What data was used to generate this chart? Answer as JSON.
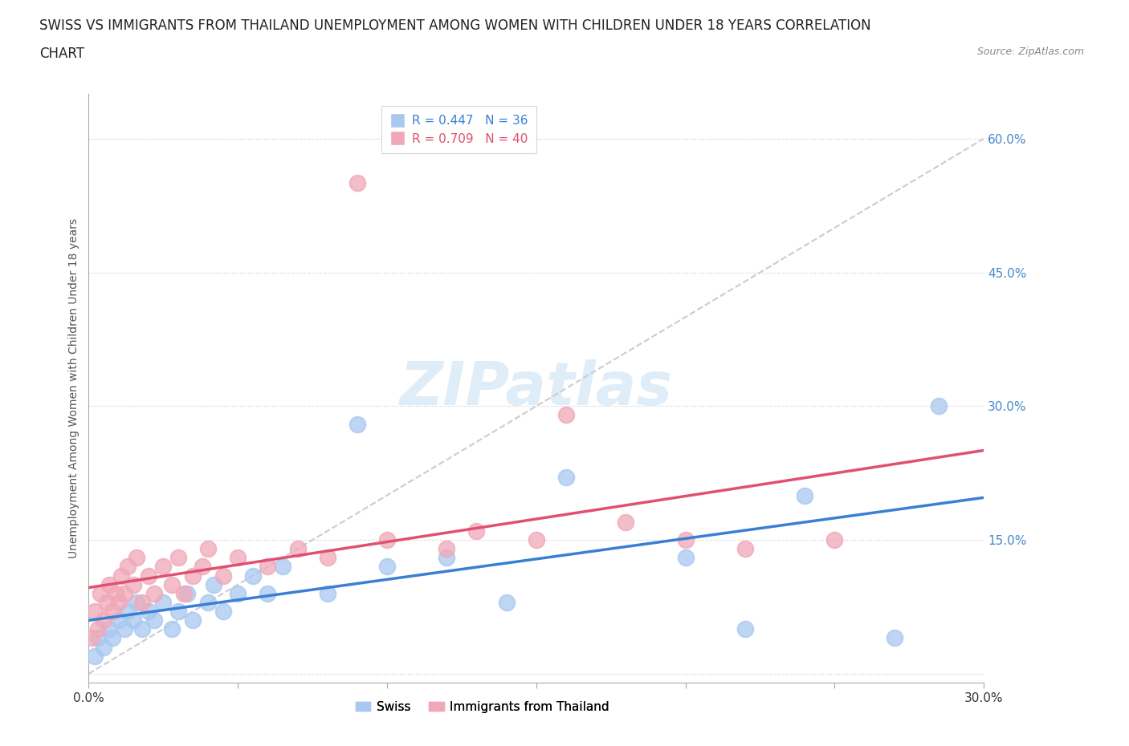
{
  "title_line1": "SWISS VS IMMIGRANTS FROM THAILAND UNEMPLOYMENT AMONG WOMEN WITH CHILDREN UNDER 18 YEARS CORRELATION",
  "title_line2": "CHART",
  "source": "Source: ZipAtlas.com",
  "ylabel": "Unemployment Among Women with Children Under 18 years",
  "xlim": [
    0.0,
    0.3
  ],
  "ylim": [
    -0.01,
    0.65
  ],
  "yticks": [
    0.0,
    0.15,
    0.3,
    0.45,
    0.6
  ],
  "ytick_labels": [
    "",
    "15.0%",
    "30.0%",
    "45.0%",
    "60.0%"
  ],
  "xticks": [
    0.0,
    0.05,
    0.1,
    0.15,
    0.2,
    0.25,
    0.3
  ],
  "xtick_labels": [
    "0.0%",
    "",
    "",
    "",
    "",
    "",
    "30.0%"
  ],
  "swiss_R": 0.447,
  "swiss_N": 36,
  "thailand_R": 0.709,
  "thailand_N": 40,
  "swiss_color": "#a8c8f0",
  "thailand_color": "#f0a8b8",
  "trend_swiss_color": "#3a7fd4",
  "trend_thailand_color": "#e05070",
  "diagonal_color": "#cccccc",
  "legend_swiss_label": "Swiss",
  "legend_thailand_label": "Immigrants from Thailand",
  "watermark": "ZIPatlas",
  "swiss_x": [
    0.002,
    0.003,
    0.005,
    0.007,
    0.008,
    0.01,
    0.012,
    0.013,
    0.015,
    0.016,
    0.018,
    0.02,
    0.022,
    0.025,
    0.028,
    0.03,
    0.033,
    0.035,
    0.04,
    0.042,
    0.045,
    0.05,
    0.055,
    0.06,
    0.065,
    0.08,
    0.09,
    0.1,
    0.12,
    0.14,
    0.16,
    0.2,
    0.22,
    0.24,
    0.27,
    0.285
  ],
  "swiss_y": [
    0.02,
    0.04,
    0.03,
    0.05,
    0.04,
    0.06,
    0.05,
    0.07,
    0.06,
    0.08,
    0.05,
    0.07,
    0.06,
    0.08,
    0.05,
    0.07,
    0.09,
    0.06,
    0.08,
    0.1,
    0.07,
    0.09,
    0.11,
    0.09,
    0.12,
    0.09,
    0.28,
    0.12,
    0.13,
    0.08,
    0.22,
    0.13,
    0.05,
    0.2,
    0.04,
    0.3
  ],
  "thailand_x": [
    0.001,
    0.002,
    0.003,
    0.004,
    0.005,
    0.006,
    0.007,
    0.008,
    0.009,
    0.01,
    0.011,
    0.012,
    0.013,
    0.015,
    0.016,
    0.018,
    0.02,
    0.022,
    0.025,
    0.028,
    0.03,
    0.032,
    0.035,
    0.038,
    0.04,
    0.045,
    0.05,
    0.06,
    0.07,
    0.08,
    0.09,
    0.1,
    0.12,
    0.13,
    0.15,
    0.16,
    0.18,
    0.2,
    0.22,
    0.25
  ],
  "thailand_y": [
    0.04,
    0.07,
    0.05,
    0.09,
    0.06,
    0.08,
    0.1,
    0.07,
    0.09,
    0.08,
    0.11,
    0.09,
    0.12,
    0.1,
    0.13,
    0.08,
    0.11,
    0.09,
    0.12,
    0.1,
    0.13,
    0.09,
    0.11,
    0.12,
    0.14,
    0.11,
    0.13,
    0.12,
    0.14,
    0.13,
    0.55,
    0.15,
    0.14,
    0.16,
    0.15,
    0.29,
    0.17,
    0.15,
    0.14,
    0.15
  ],
  "background_color": "#ffffff",
  "title_fontsize": 12,
  "axis_label_fontsize": 10,
  "tick_fontsize": 11,
  "legend_fontsize": 11,
  "tick_color": "#4488cc"
}
